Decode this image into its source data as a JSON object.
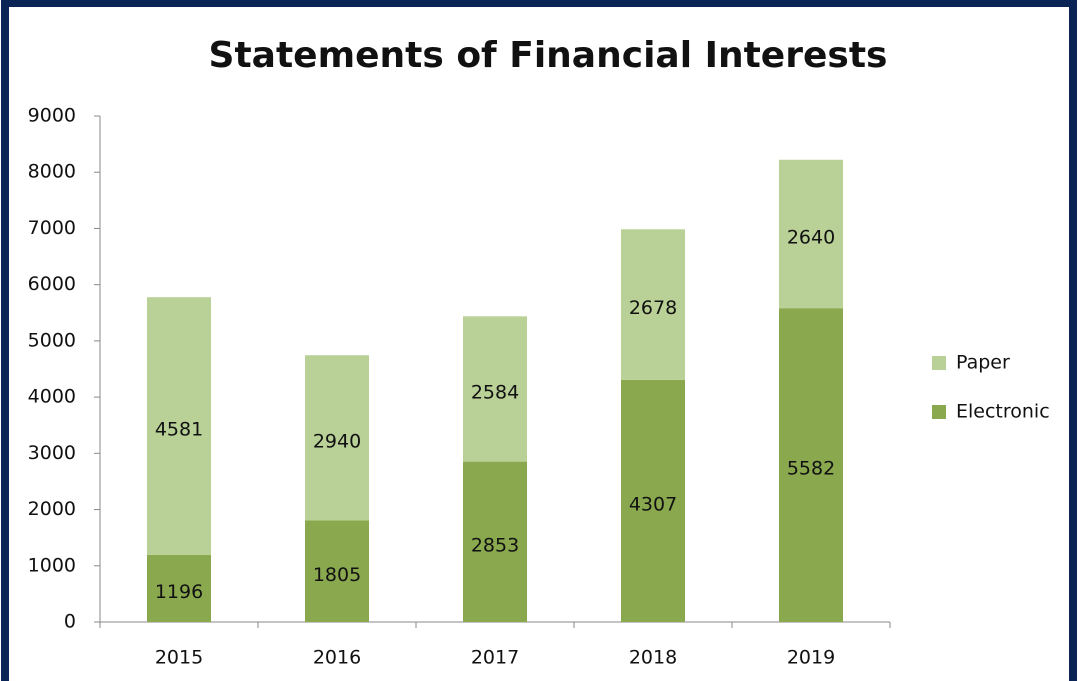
{
  "chart_data": {
    "type": "stacked_bar",
    "title": "Statements of Financial Interests",
    "categories": [
      "2015",
      "2016",
      "2017",
      "2018",
      "2019"
    ],
    "series": [
      {
        "name": "Electronic",
        "color": "#8aa94f",
        "values": [
          1196,
          1805,
          2853,
          4307,
          5582
        ]
      },
      {
        "name": "Paper",
        "color": "#b9d096",
        "values": [
          4581,
          2940,
          2584,
          2678,
          2640
        ]
      }
    ],
    "ylim": [
      0,
      9000
    ],
    "yticks": [
      0,
      1000,
      2000,
      3000,
      4000,
      5000,
      6000,
      7000,
      8000,
      9000
    ],
    "legend": "right"
  }
}
